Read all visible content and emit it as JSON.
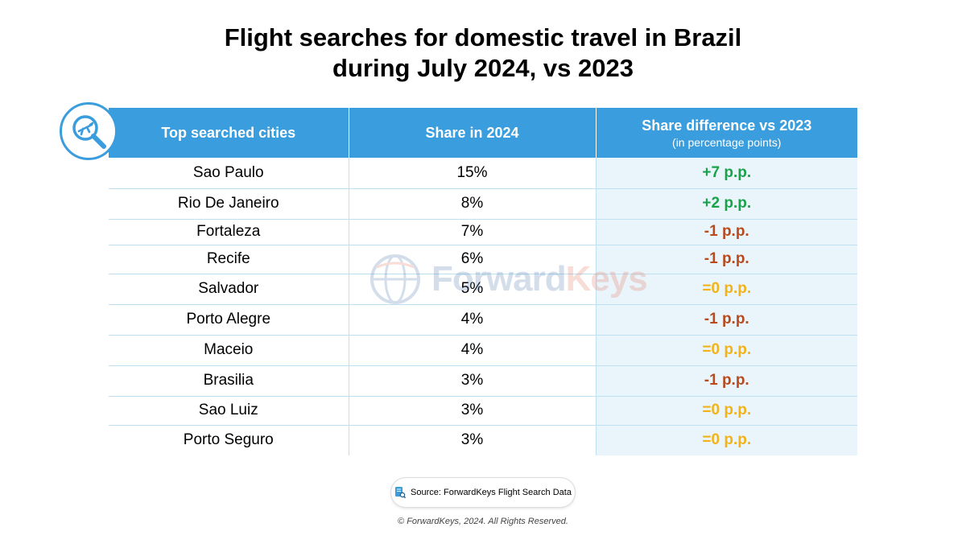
{
  "title_line1": "Flight searches for domestic travel in Brazil",
  "title_line2": "during July 2024, vs 2023",
  "headers": {
    "col1": "Top searched cities",
    "col2": "Share in 2024",
    "col3": "Share difference vs 2023",
    "col3_sub": "(in percentage points)"
  },
  "colors": {
    "header_bg": "#3a9ddd",
    "positive": "#1aa24b",
    "negative": "#b84a1c",
    "zero": "#f3b318",
    "diff_col_bg": "#eaf5fb"
  },
  "chart_data": {
    "type": "table",
    "columns": [
      "Top searched cities",
      "Share in 2024",
      "Share difference vs 2023"
    ],
    "rows": [
      {
        "city": "Sao Paulo",
        "share": "15%",
        "diff": "+7 p.p.",
        "sign": "pos"
      },
      {
        "city": "Rio De Janeiro",
        "share": "8%",
        "diff": "+2 p.p.",
        "sign": "pos"
      },
      {
        "city": "Fortaleza",
        "share": "7%",
        "diff": "-1 p.p.",
        "sign": "neg"
      },
      {
        "city": "Recife",
        "share": "6%",
        "diff": "-1 p.p.",
        "sign": "neg"
      },
      {
        "city": "Salvador",
        "share": "5%",
        "diff": "=0 p.p.",
        "sign": "zero"
      },
      {
        "city": "Porto Alegre",
        "share": "4%",
        "diff": "-1 p.p.",
        "sign": "neg"
      },
      {
        "city": "Maceio",
        "share": "4%",
        "diff": "=0 p.p.",
        "sign": "zero"
      },
      {
        "city": "Brasilia",
        "share": "3%",
        "diff": "-1 p.p.",
        "sign": "neg"
      },
      {
        "city": "Sao Luiz",
        "share": "3%",
        "diff": "=0 p.p.",
        "sign": "zero"
      },
      {
        "city": "Porto Seguro",
        "share": "3%",
        "diff": "=0 p.p.",
        "sign": "zero"
      }
    ]
  },
  "watermark": {
    "part1": "Forward",
    "part2": "Keys",
    "icon": "globe-icon"
  },
  "badge_icon": "airplane-search-icon",
  "source_icon": "document-search-icon",
  "source": "Source: ForwardKeys Flight Search Data",
  "copyright": "© ForwardKeys, 2024. All Rights Reserved."
}
